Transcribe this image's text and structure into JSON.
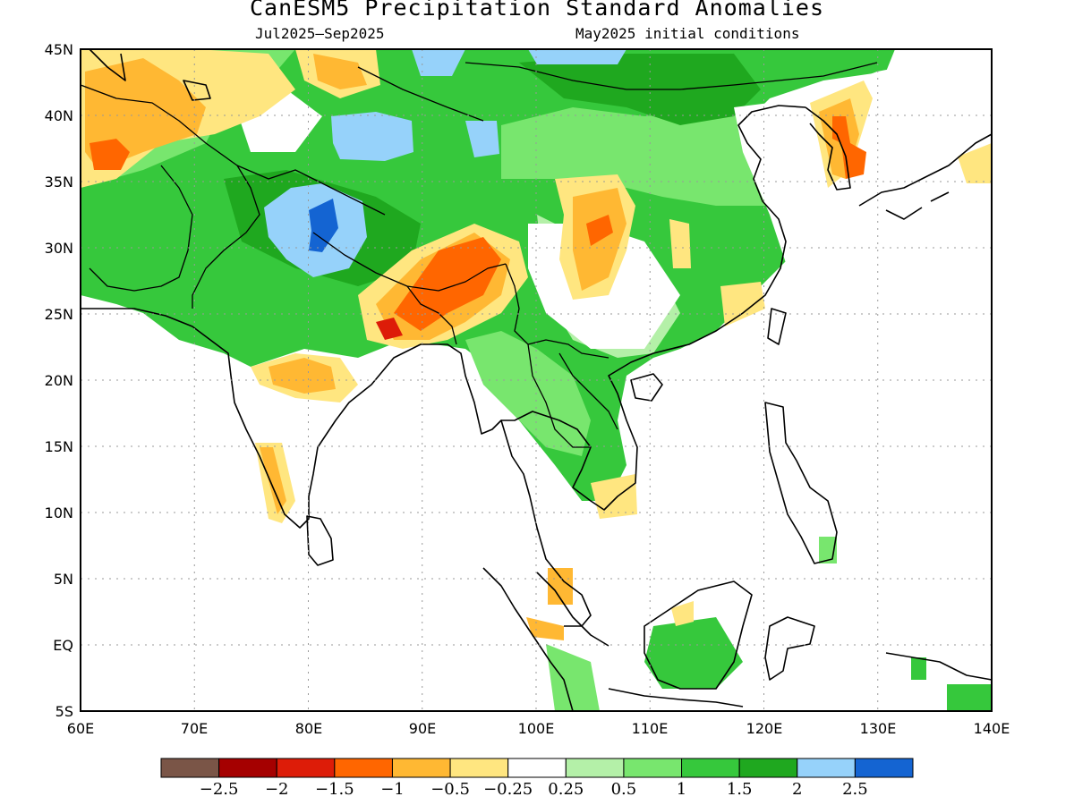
{
  "title": "CanESM5 Precipitation Standard Anomalies",
  "subtitle_left": "Jul2025–Sep2025",
  "subtitle_right": "May2025 initial conditions",
  "axes": {
    "lon_labels": [
      "60E",
      "70E",
      "80E",
      "90E",
      "100E",
      "110E",
      "120E",
      "130E",
      "140E"
    ],
    "lat_labels": [
      "45N",
      "40N",
      "35N",
      "30N",
      "25N",
      "20N",
      "15N",
      "10N",
      "5N",
      "EQ",
      "5S"
    ]
  },
  "colorbar": {
    "labels": [
      "−2.5",
      "−2",
      "−1.5",
      "−1",
      "−0.5",
      "−0.25",
      "0.25",
      "0.5",
      "1",
      "1.5",
      "2",
      "2.5"
    ],
    "colors": [
      "#7a5547",
      "#a50000",
      "#dd1c08",
      "#ff6600",
      "#ffb833",
      "#ffe680",
      "#ffffff",
      "#b4f0a8",
      "#78e66e",
      "#36c83c",
      "#1fa81f",
      "#96d2fa",
      "#1464d2"
    ]
  }
}
